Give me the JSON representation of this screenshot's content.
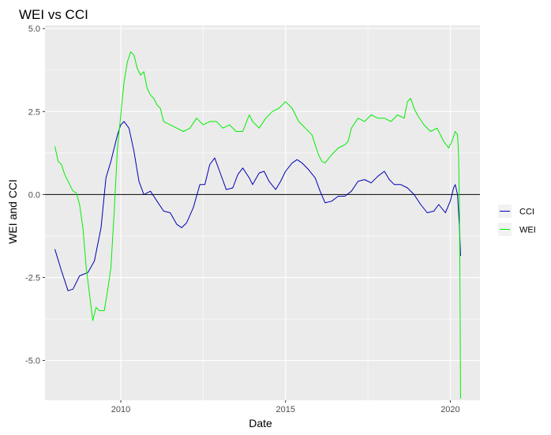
{
  "chart_data": {
    "type": "line",
    "title": "WEI vs CCI",
    "xlabel": "Date",
    "ylabel": "WEI and CCI",
    "xlim": [
      2007.7,
      2020.9
    ],
    "ylim": [
      -6.2,
      5.1
    ],
    "x_ticks": [
      2010,
      2015,
      2020
    ],
    "x_tick_labels": [
      "2010",
      "2015",
      "2020"
    ],
    "y_ticks": [
      5.0,
      2.5,
      0.0,
      -2.5,
      -5.0
    ],
    "y_tick_labels": [
      "5.0",
      "2.5",
      "0.0",
      "-2.5",
      "-5.0"
    ],
    "reference_line_y": 0,
    "grid": true,
    "legend_position": "right",
    "series": [
      {
        "name": "CCI",
        "color": "#0000b3",
        "points": [
          [
            2008.0,
            -1.65
          ],
          [
            2008.2,
            -2.3
          ],
          [
            2008.4,
            -2.9
          ],
          [
            2008.55,
            -2.85
          ],
          [
            2008.75,
            -2.45
          ],
          [
            2009.0,
            -2.35
          ],
          [
            2009.2,
            -2.0
          ],
          [
            2009.4,
            -1.0
          ],
          [
            2009.55,
            0.5
          ],
          [
            2009.7,
            1.0
          ],
          [
            2009.9,
            1.8
          ],
          [
            2010.0,
            2.1
          ],
          [
            2010.1,
            2.2
          ],
          [
            2010.25,
            2.0
          ],
          [
            2010.4,
            1.3
          ],
          [
            2010.55,
            0.4
          ],
          [
            2010.7,
            0.0
          ],
          [
            2010.9,
            0.1
          ],
          [
            2011.1,
            -0.2
          ],
          [
            2011.3,
            -0.5
          ],
          [
            2011.5,
            -0.55
          ],
          [
            2011.7,
            -0.9
          ],
          [
            2011.85,
            -1.0
          ],
          [
            2012.0,
            -0.85
          ],
          [
            2012.2,
            -0.4
          ],
          [
            2012.4,
            0.3
          ],
          [
            2012.55,
            0.3
          ],
          [
            2012.7,
            0.9
          ],
          [
            2012.85,
            1.1
          ],
          [
            2013.0,
            0.7
          ],
          [
            2013.2,
            0.15
          ],
          [
            2013.4,
            0.2
          ],
          [
            2013.55,
            0.6
          ],
          [
            2013.7,
            0.8
          ],
          [
            2013.9,
            0.5
          ],
          [
            2014.0,
            0.3
          ],
          [
            2014.2,
            0.65
          ],
          [
            2014.35,
            0.7
          ],
          [
            2014.5,
            0.4
          ],
          [
            2014.7,
            0.15
          ],
          [
            2014.85,
            0.4
          ],
          [
            2015.0,
            0.7
          ],
          [
            2015.2,
            0.95
          ],
          [
            2015.35,
            1.05
          ],
          [
            2015.5,
            0.95
          ],
          [
            2015.7,
            0.75
          ],
          [
            2015.9,
            0.5
          ],
          [
            2016.05,
            0.1
          ],
          [
            2016.2,
            -0.25
          ],
          [
            2016.4,
            -0.2
          ],
          [
            2016.6,
            -0.05
          ],
          [
            2016.8,
            -0.05
          ],
          [
            2017.0,
            0.1
          ],
          [
            2017.2,
            0.4
          ],
          [
            2017.4,
            0.45
          ],
          [
            2017.6,
            0.35
          ],
          [
            2017.8,
            0.55
          ],
          [
            2018.0,
            0.7
          ],
          [
            2018.15,
            0.45
          ],
          [
            2018.3,
            0.3
          ],
          [
            2018.5,
            0.3
          ],
          [
            2018.7,
            0.2
          ],
          [
            2018.9,
            0.0
          ],
          [
            2019.1,
            -0.3
          ],
          [
            2019.3,
            -0.55
          ],
          [
            2019.5,
            -0.5
          ],
          [
            2019.65,
            -0.3
          ],
          [
            2019.85,
            -0.55
          ],
          [
            2020.0,
            -0.2
          ],
          [
            2020.1,
            0.2
          ],
          [
            2020.15,
            0.3
          ],
          [
            2020.22,
            0.0
          ],
          [
            2020.28,
            -1.0
          ],
          [
            2020.31,
            -1.85
          ]
        ]
      },
      {
        "name": "WEI",
        "color": "#00ee00",
        "points": [
          [
            2008.0,
            1.45
          ],
          [
            2008.1,
            1.0
          ],
          [
            2008.2,
            0.9
          ],
          [
            2008.3,
            0.6
          ],
          [
            2008.45,
            0.3
          ],
          [
            2008.55,
            0.1
          ],
          [
            2008.65,
            0.05
          ],
          [
            2008.75,
            -0.3
          ],
          [
            2008.85,
            -1.0
          ],
          [
            2008.95,
            -2.2
          ],
          [
            2009.05,
            -3.0
          ],
          [
            2009.15,
            -3.8
          ],
          [
            2009.25,
            -3.4
          ],
          [
            2009.35,
            -3.5
          ],
          [
            2009.5,
            -3.5
          ],
          [
            2009.6,
            -2.9
          ],
          [
            2009.7,
            -2.2
          ],
          [
            2009.8,
            -0.5
          ],
          [
            2009.9,
            1.4
          ],
          [
            2010.0,
            2.4
          ],
          [
            2010.1,
            3.4
          ],
          [
            2010.2,
            4.0
          ],
          [
            2010.3,
            4.3
          ],
          [
            2010.4,
            4.2
          ],
          [
            2010.5,
            3.8
          ],
          [
            2010.6,
            3.6
          ],
          [
            2010.7,
            3.7
          ],
          [
            2010.8,
            3.2
          ],
          [
            2010.9,
            3.0
          ],
          [
            2011.0,
            2.9
          ],
          [
            2011.1,
            2.7
          ],
          [
            2011.2,
            2.6
          ],
          [
            2011.3,
            2.2
          ],
          [
            2011.5,
            2.1
          ],
          [
            2011.7,
            2.0
          ],
          [
            2011.9,
            1.9
          ],
          [
            2012.1,
            2.0
          ],
          [
            2012.3,
            2.3
          ],
          [
            2012.5,
            2.1
          ],
          [
            2012.7,
            2.2
          ],
          [
            2012.9,
            2.2
          ],
          [
            2013.1,
            2.0
          ],
          [
            2013.3,
            2.1
          ],
          [
            2013.5,
            1.9
          ],
          [
            2013.7,
            1.9
          ],
          [
            2013.9,
            2.4
          ],
          [
            2014.0,
            2.2
          ],
          [
            2014.2,
            2.0
          ],
          [
            2014.4,
            2.3
          ],
          [
            2014.6,
            2.5
          ],
          [
            2014.8,
            2.6
          ],
          [
            2015.0,
            2.8
          ],
          [
            2015.2,
            2.6
          ],
          [
            2015.4,
            2.2
          ],
          [
            2015.6,
            2.0
          ],
          [
            2015.8,
            1.8
          ],
          [
            2016.0,
            1.2
          ],
          [
            2016.1,
            1.0
          ],
          [
            2016.2,
            0.95
          ],
          [
            2016.4,
            1.2
          ],
          [
            2016.6,
            1.4
          ],
          [
            2016.8,
            1.5
          ],
          [
            2016.9,
            1.6
          ],
          [
            2017.0,
            2.0
          ],
          [
            2017.2,
            2.3
          ],
          [
            2017.4,
            2.2
          ],
          [
            2017.6,
            2.4
          ],
          [
            2017.8,
            2.3
          ],
          [
            2018.0,
            2.3
          ],
          [
            2018.2,
            2.2
          ],
          [
            2018.4,
            2.4
          ],
          [
            2018.6,
            2.3
          ],
          [
            2018.7,
            2.8
          ],
          [
            2018.8,
            2.9
          ],
          [
            2018.9,
            2.6
          ],
          [
            2019.0,
            2.4
          ],
          [
            2019.2,
            2.1
          ],
          [
            2019.4,
            1.9
          ],
          [
            2019.6,
            2.0
          ],
          [
            2019.8,
            1.6
          ],
          [
            2019.95,
            1.4
          ],
          [
            2020.05,
            1.6
          ],
          [
            2020.15,
            1.9
          ],
          [
            2020.22,
            1.8
          ],
          [
            2020.25,
            1.2
          ],
          [
            2020.28,
            -0.5
          ],
          [
            2020.3,
            -4.0
          ],
          [
            2020.31,
            -6.15
          ]
        ]
      }
    ]
  }
}
